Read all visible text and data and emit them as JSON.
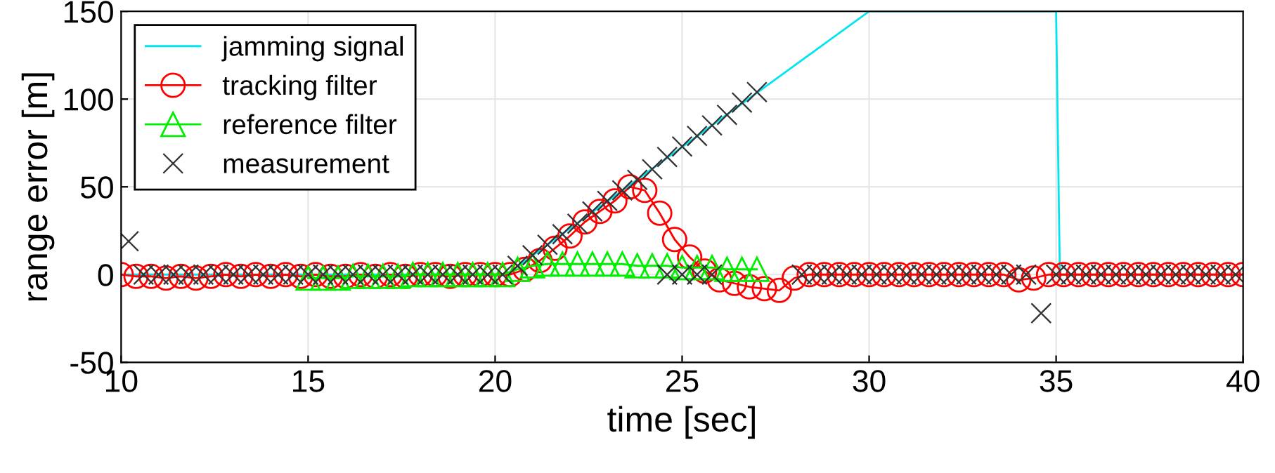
{
  "chart_data": {
    "type": "line",
    "xlabel": "time [sec]",
    "ylabel": "range error [m]",
    "xlim": [
      10,
      40
    ],
    "xticks": [
      10,
      15,
      20,
      25,
      30,
      35,
      40
    ],
    "ylim": [
      -50,
      150
    ],
    "yticks": [
      -50,
      0,
      50,
      100,
      150
    ],
    "grid": true,
    "legend": "top left",
    "series": [
      {
        "name": "jamming signal",
        "color": "#00e5ee",
        "marker": "none",
        "x": [
          10,
          20.3,
          30,
          35,
          35.1,
          40
        ],
        "values": [
          0,
          0,
          150,
          150,
          0,
          0
        ]
      },
      {
        "name": "tracking filter",
        "color": "#ff0000",
        "marker": "circle",
        "x": [
          10.0,
          10.4,
          10.8,
          11.2,
          11.6,
          12.0,
          12.4,
          12.8,
          13.2,
          13.6,
          14.0,
          14.4,
          14.8,
          15.2,
          15.6,
          16.0,
          16.4,
          16.8,
          17.2,
          17.6,
          18.0,
          18.4,
          18.8,
          19.2,
          19.6,
          20.0,
          20.4,
          20.8,
          21.2,
          21.6,
          22.0,
          22.4,
          22.8,
          23.2,
          23.6,
          24.0,
          24.4,
          24.8,
          25.2,
          25.6,
          26.0,
          26.4,
          26.8,
          27.2,
          27.6,
          28.0,
          28.4,
          28.8,
          29.2,
          29.6,
          30.0,
          30.4,
          30.8,
          31.2,
          31.6,
          32.0,
          32.4,
          32.8,
          33.2,
          33.6,
          34.0,
          34.4,
          34.8,
          35.2,
          35.6,
          36.0,
          36.4,
          36.8,
          37.2,
          37.6,
          38.0,
          38.4,
          38.8,
          39.2,
          39.6,
          40.0
        ],
        "values": [
          0,
          -1,
          -1,
          -2,
          -1,
          -2,
          -1,
          0,
          -1,
          0,
          -1,
          0,
          -1,
          0,
          -1,
          -1,
          0,
          -1,
          0,
          -1,
          0,
          0,
          -1,
          0,
          0,
          0,
          0,
          3,
          8,
          15,
          22,
          30,
          36,
          42,
          50,
          48,
          35,
          20,
          10,
          2,
          -3,
          -5,
          -7,
          -8,
          -9,
          -2,
          0,
          0,
          0,
          0,
          0,
          0,
          0,
          0,
          0,
          0,
          0,
          0,
          0,
          0,
          -3,
          -2,
          0,
          0,
          0,
          0,
          0,
          0,
          0,
          0,
          0,
          0,
          0,
          0,
          0,
          0
        ]
      },
      {
        "name": "reference filter",
        "color": "#00ee00",
        "marker": "triangle",
        "x": [
          15.0,
          15.4,
          15.8,
          16.2,
          16.6,
          17.0,
          17.4,
          17.8,
          18.2,
          18.6,
          19.0,
          19.4,
          19.8,
          20.2,
          20.6,
          21.0,
          21.4,
          21.8,
          22.2,
          22.6,
          23.0,
          23.4,
          23.8,
          24.2,
          24.6,
          25.0,
          25.4,
          25.8,
          26.2,
          26.6,
          27.0
        ],
        "values": [
          -2,
          -2,
          -2,
          -1,
          -1,
          -1,
          -1,
          0,
          0,
          0,
          0,
          0,
          0,
          0,
          3,
          5,
          6,
          6,
          6,
          6,
          6,
          6,
          5,
          5,
          5,
          4,
          4,
          4,
          3,
          3,
          3
        ]
      },
      {
        "name": "measurement",
        "type": "scatter",
        "color": "#333333",
        "marker": "cross",
        "x": [
          10.2,
          10.6,
          11.0,
          11.4,
          11.8,
          12.2,
          12.6,
          13.0,
          13.4,
          13.8,
          14.2,
          14.6,
          15.0,
          15.4,
          15.8,
          16.2,
          16.6,
          17.0,
          17.4,
          17.8,
          18.2,
          18.6,
          19.0,
          19.4,
          19.8,
          20.2,
          20.6,
          21.0,
          21.4,
          21.8,
          22.2,
          22.6,
          23.0,
          23.4,
          23.8,
          24.2,
          24.6,
          25.0,
          25.4,
          25.8,
          26.2,
          26.6,
          27.0,
          24.6,
          25.0,
          25.4,
          25.8,
          28.2,
          28.6,
          29.0,
          29.4,
          29.8,
          30.2,
          30.6,
          31.0,
          31.4,
          31.8,
          32.2,
          32.6,
          33.0,
          33.4,
          33.8,
          34.2,
          34.6,
          35.0,
          35.4,
          35.8,
          36.2,
          36.6,
          37.0,
          37.4,
          37.8,
          38.2,
          38.6,
          39.0,
          39.4,
          39.8
        ],
        "values": [
          19,
          0,
          0,
          0,
          0,
          0,
          0,
          0,
          0,
          0,
          0,
          0,
          0,
          0,
          0,
          0,
          0,
          0,
          0,
          0,
          0,
          0,
          0,
          0,
          0,
          0,
          5,
          11,
          17,
          23,
          29,
          36,
          42,
          48,
          54,
          60,
          67,
          73,
          79,
          85,
          91,
          98,
          104,
          0,
          0,
          0,
          0,
          0,
          0,
          0,
          0,
          0,
          0,
          0,
          0,
          0,
          0,
          0,
          0,
          0,
          0,
          0,
          0,
          -22,
          0,
          0,
          0,
          0,
          0,
          0,
          0,
          0,
          0,
          0,
          0,
          0,
          0
        ]
      }
    ]
  }
}
